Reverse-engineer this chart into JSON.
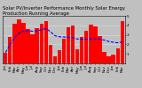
{
  "title": "Solar PV/Inverter Performance Monthly Solar Energy Production Running Average",
  "bar_color": "#FF0000",
  "avg_color": "#0000FF",
  "background_color": "#C0C0C0",
  "plot_bg_color": "#C0C0C0",
  "grid_color": "#FFFFFF",
  "months": [
    "Jan",
    "Feb",
    "Mar",
    "Apr",
    "May",
    "Jun",
    "Jul",
    "Aug",
    "Sep",
    "Oct",
    "Nov",
    "Dec",
    "Jan",
    "Feb",
    "Mar",
    "Apr",
    "May",
    "Jun",
    "Jul",
    "Aug",
    "Sep",
    "Oct",
    "Nov",
    "Dec",
    "Jan",
    "Feb",
    "Mar"
  ],
  "values": [
    115,
    275,
    420,
    460,
    430,
    360,
    310,
    370,
    420,
    440,
    195,
    75,
    135,
    255,
    380,
    395,
    145,
    275,
    345,
    405,
    385,
    285,
    125,
    70,
    90,
    155,
    440
  ],
  "running_avg": [
    115,
    195,
    270,
    318,
    340,
    343,
    338,
    343,
    353,
    366,
    333,
    291,
    280,
    278,
    274,
    271,
    256,
    254,
    253,
    256,
    257,
    254,
    245,
    230,
    222,
    216,
    226
  ],
  "ylim": [
    0,
    500
  ],
  "yticks": [
    100,
    200,
    300,
    400,
    500
  ],
  "ytick_labels": [
    "1",
    "2",
    "3",
    "4",
    "5"
  ],
  "title_fontsize": 3.8,
  "tick_fontsize": 3.0,
  "label_fontsize": 3.0
}
